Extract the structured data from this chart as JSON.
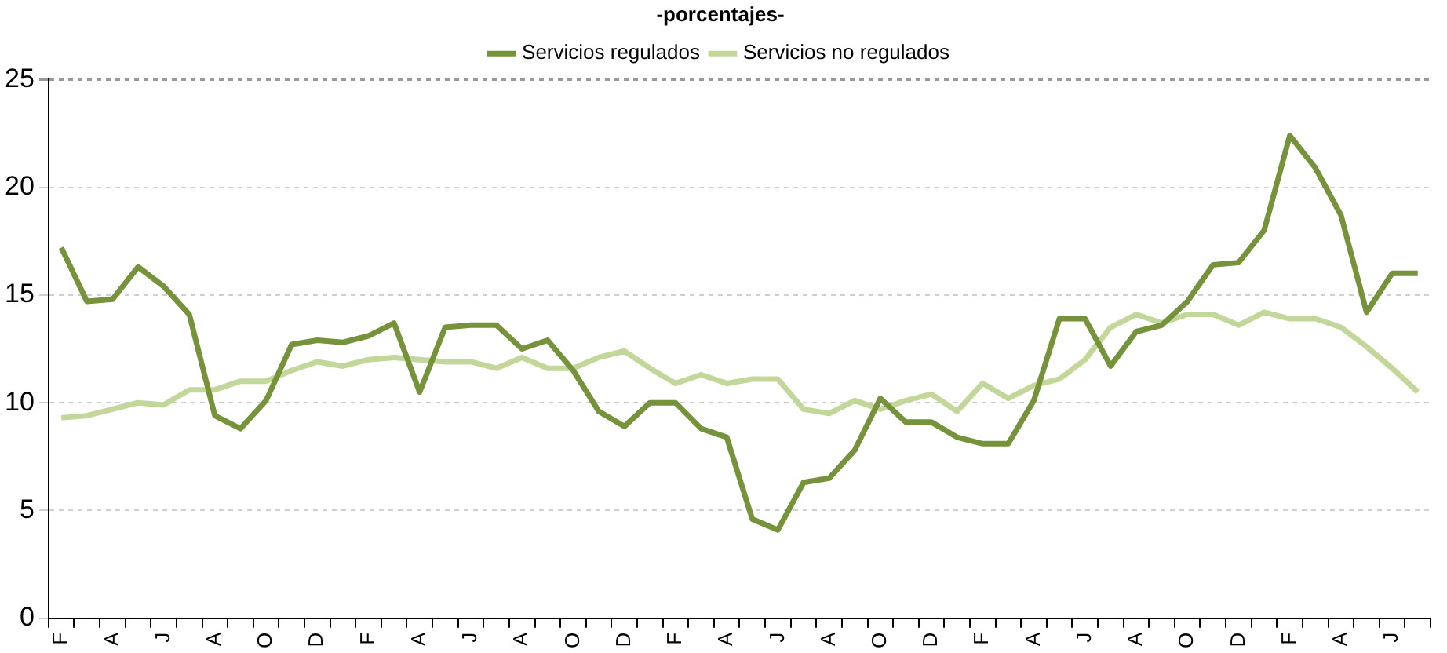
{
  "chart_data": {
    "type": "line",
    "title": "-porcentajes-",
    "categories": [
      "F",
      null,
      "A",
      null,
      "J",
      null,
      "A",
      null,
      "O",
      null,
      "D",
      null,
      "F",
      null,
      "A",
      null,
      "J",
      null,
      "A",
      null,
      "O",
      null,
      "D",
      null,
      "F",
      null,
      "A",
      null,
      "J",
      null,
      "A",
      null,
      "O",
      null,
      "D",
      null,
      "F",
      null,
      "A",
      null,
      "J",
      null,
      "A",
      null,
      "O",
      null,
      "D",
      null,
      "F",
      null,
      "A",
      null,
      "J",
      null
    ],
    "series": [
      {
        "name": "Servicios regulados",
        "color": "#76933c",
        "values": [
          17.2,
          14.7,
          14.8,
          16.3,
          15.4,
          14.1,
          9.4,
          8.8,
          10.1,
          12.7,
          12.9,
          12.8,
          13.1,
          13.7,
          10.5,
          13.5,
          13.6,
          13.6,
          12.5,
          12.9,
          11.5,
          9.6,
          8.9,
          10.0,
          10.0,
          8.8,
          8.4,
          4.6,
          4.1,
          6.3,
          6.5,
          7.8,
          10.2,
          9.1,
          9.1,
          8.4,
          8.1,
          8.1,
          10.1,
          13.9,
          13.9,
          11.7,
          13.3,
          13.6,
          14.7,
          16.4,
          16.5,
          18.0,
          22.4,
          20.9,
          18.7,
          14.2,
          16.0,
          16.0
        ]
      },
      {
        "name": "Servicios no regulados",
        "color": "#c4d79b",
        "values": [
          9.3,
          9.4,
          9.7,
          10.0,
          9.9,
          10.6,
          10.6,
          11.0,
          11.0,
          11.5,
          11.9,
          11.7,
          12.0,
          12.1,
          12.0,
          11.9,
          11.9,
          11.6,
          12.1,
          11.6,
          11.6,
          12.1,
          12.4,
          11.6,
          10.9,
          11.3,
          10.9,
          11.1,
          11.1,
          9.7,
          9.5,
          10.1,
          9.7,
          10.1,
          10.4,
          9.6,
          10.9,
          10.2,
          10.8,
          11.1,
          12.0,
          13.5,
          14.1,
          13.7,
          14.1,
          14.1,
          13.6,
          14.2,
          13.9,
          13.9,
          13.5,
          12.6,
          11.6,
          10.5
        ]
      }
    ],
    "ylim": [
      0,
      25
    ],
    "yticks": [
      0,
      5,
      10,
      15,
      20,
      25
    ],
    "grid": "y",
    "legend": "top",
    "marker": "none"
  }
}
